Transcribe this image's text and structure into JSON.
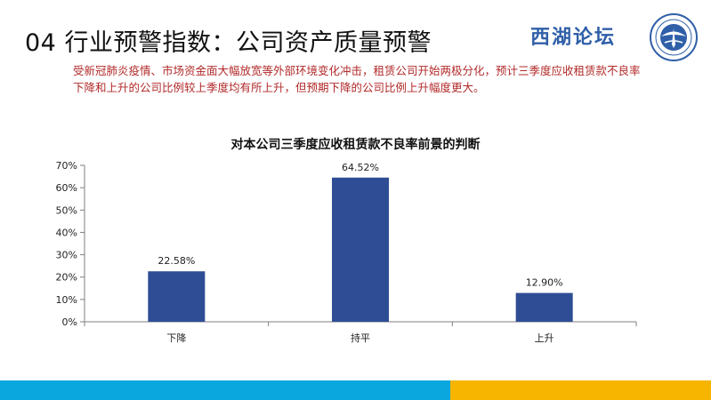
{
  "header": {
    "title": "04 行业预警指数：公司资产质量预警",
    "subtitle": "受新冠肺炎疫情、市场资金面大幅放宽等外部环境变化冲击，租赁公司开始两极分化，预计三季度应收租赁款不良率下降和上升的公司比例较上季度均有所上升，但预期下降的公司比例上升幅度更大。",
    "brand": "西湖论坛",
    "logo_icon": "emblem-logo-icon"
  },
  "colors": {
    "bar": "#2e4d94",
    "accent_blue": "#0aa6de",
    "accent_yellow": "#f7b500",
    "subtitle_red": "#b22a2a"
  },
  "chart_data": {
    "type": "bar",
    "title": "对本公司三季度应收租赁款不良率前景的判断",
    "categories": [
      "下降",
      "持平",
      "上升"
    ],
    "values": [
      22.58,
      64.52,
      12.9
    ],
    "value_labels": [
      "22.58%",
      "64.52%",
      "12.90%"
    ],
    "y_ticks": [
      "0%",
      "10%",
      "20%",
      "30%",
      "40%",
      "50%",
      "60%",
      "70%"
    ],
    "ylim": [
      0,
      70
    ],
    "xlabel": "",
    "ylabel": "",
    "grid": false,
    "legend": "none"
  }
}
